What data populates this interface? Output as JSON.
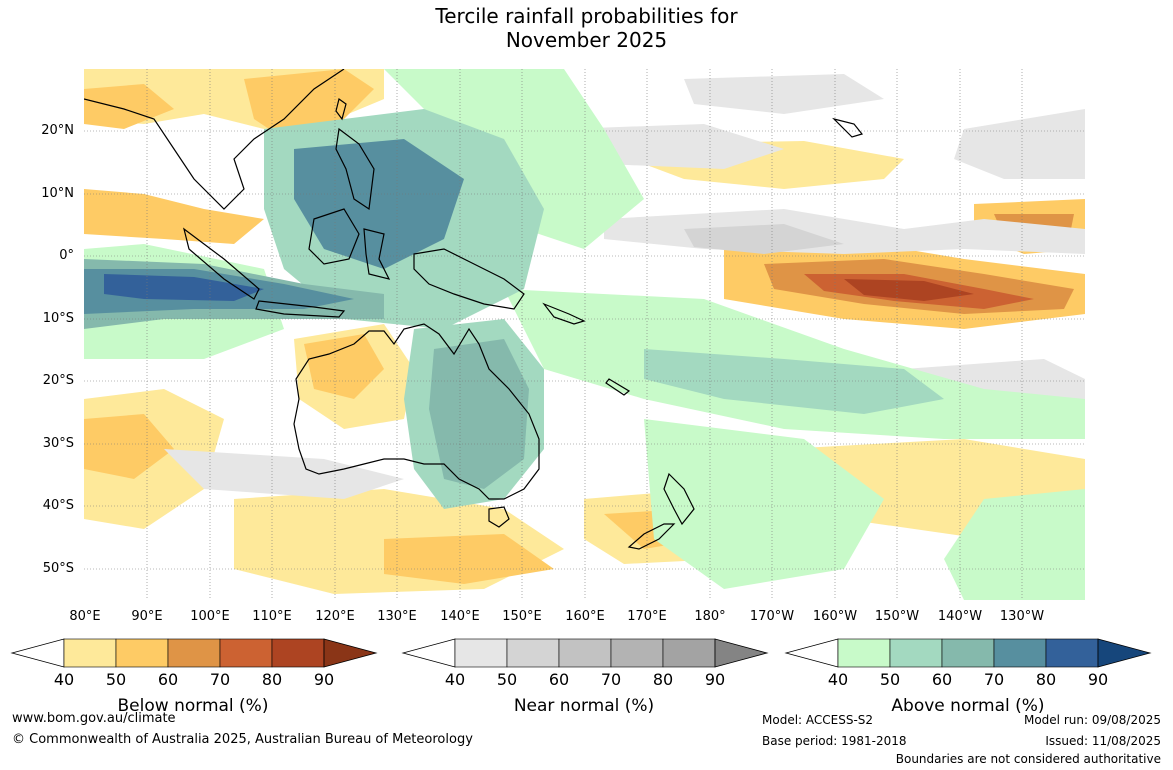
{
  "title_line1": "Tercile rainfall probabilities for",
  "title_line2": "November 2025",
  "lat_labels": [
    "20°N",
    "10°N",
    "0°",
    "10°S",
    "20°S",
    "30°S",
    "40°S",
    "50°S"
  ],
  "lon_labels": [
    "80°E",
    "90°E",
    "100°E",
    "110°E",
    "120°E",
    "130°E",
    "140°E",
    "150°E",
    "160°E",
    "170°E",
    "180°",
    "170°W",
    "160°W",
    "150°W",
    "140°W",
    "130°W"
  ],
  "legends": [
    {
      "title": "Below normal (%)",
      "ticks": [
        "40",
        "50",
        "60",
        "70",
        "80",
        "90"
      ],
      "colors": [
        "#fee99a",
        "#fecb65",
        "#df9446",
        "#cc6232",
        "#ad4422",
        "#8a3517"
      ]
    },
    {
      "title": "Near normal (%)",
      "ticks": [
        "40",
        "50",
        "60",
        "70",
        "80",
        "90"
      ],
      "colors": [
        "#e6e6e6",
        "#d4d4d4",
        "#c2c2c2",
        "#b3b3b3",
        "#a3a3a3",
        "#848484"
      ]
    },
    {
      "title": "Above normal (%)",
      "ticks": [
        "40",
        "50",
        "60",
        "70",
        "80",
        "90"
      ],
      "colors": [
        "#c8fac9",
        "#a3d9c0",
        "#85b9ac",
        "#578f9f",
        "#33619a",
        "#16467b"
      ]
    }
  ],
  "footer": {
    "url": "www.bom.gov.au/climate",
    "copyright": "© Commonwealth of Australia 2025, Australian Bureau of Meteorology",
    "model": "Model: ACCESS-S2",
    "base_period": "Base period: 1981-2018",
    "model_run": "Model run: 09/08/2025",
    "issued": "Issued: 11/08/2025",
    "disclaimer": "Boundaries are not considered authoritative"
  }
}
